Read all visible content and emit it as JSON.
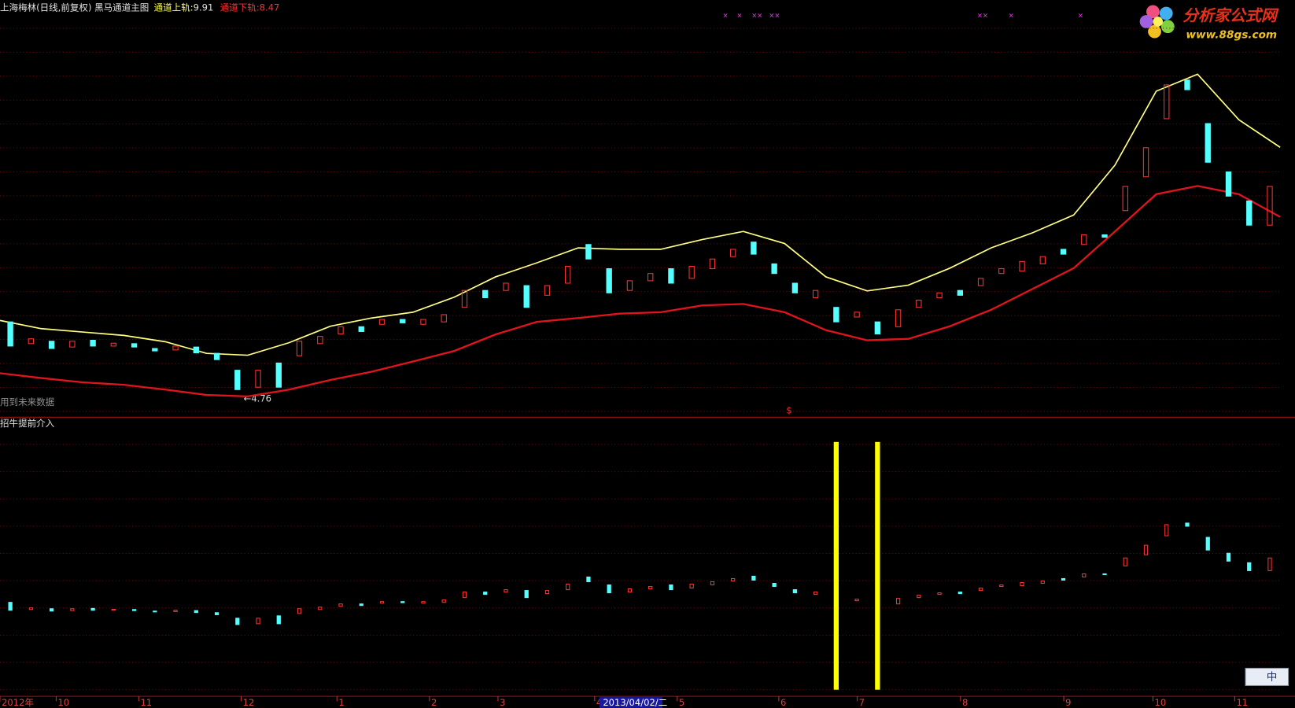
{
  "header": {
    "title": "上海梅林(日线,前复权) 黑马通道主图",
    "upper_label": "通道上轨:",
    "upper_value": 9.91,
    "lower_label": "通道下轨:",
    "lower_value": 8.47,
    "future_note": "用到未来数据",
    "low_mark": "←4.76",
    "dollar": "$",
    "indicator_title": "招牛提前介入",
    "logo_title": "分析家公式网",
    "logo_url": "www.88gs.com",
    "ime": "中"
  },
  "x_axis_labels": [
    "2012年",
    "10",
    "11",
    "12",
    "1",
    "2",
    "3",
    "4",
    "2013/04/02/二",
    "5",
    "6",
    "7",
    "8",
    "9",
    "10",
    "11"
  ],
  "chart_data": {
    "type": "candlestick",
    "ylim": [
      4.33,
      12.61
    ],
    "xlim": [
      0,
      62
    ],
    "up_color": "#ff3232",
    "down_color": "#54ffff",
    "bands": [
      {
        "name": "通道上轨:",
        "color": "#ffff80",
        "x": [
          0,
          2,
          4,
          6,
          8,
          10,
          12,
          14,
          16,
          18,
          20,
          22,
          24,
          26,
          28,
          30,
          32,
          34,
          36,
          38,
          40,
          42,
          44,
          46,
          48,
          50,
          52,
          54,
          56,
          58,
          60,
          62
        ],
        "values": [
          6.33,
          6.16,
          6.09,
          6.02,
          5.89,
          5.65,
          5.61,
          5.87,
          6.21,
          6.38,
          6.5,
          6.81,
          7.23,
          7.52,
          7.83,
          7.8,
          7.8,
          8.0,
          8.17,
          7.92,
          7.23,
          6.94,
          7.06,
          7.41,
          7.83,
          8.14,
          8.51,
          9.54,
          11.07,
          11.42,
          10.48,
          9.91
        ]
      },
      {
        "name": "通道下轨:",
        "color": "#e0141e",
        "x": [
          0,
          2,
          4,
          6,
          8,
          10,
          12,
          14,
          16,
          18,
          20,
          22,
          24,
          26,
          28,
          30,
          32,
          34,
          36,
          38,
          40,
          42,
          44,
          46,
          48,
          50,
          52,
          54,
          56,
          58,
          60,
          62
        ],
        "values": [
          5.24,
          5.14,
          5.05,
          5.0,
          4.9,
          4.79,
          4.76,
          4.9,
          5.1,
          5.27,
          5.48,
          5.7,
          6.04,
          6.3,
          6.38,
          6.47,
          6.5,
          6.64,
          6.67,
          6.5,
          6.13,
          5.92,
          5.95,
          6.21,
          6.55,
          6.98,
          7.41,
          8.17,
          8.94,
          9.11,
          8.94,
          8.47
        ]
      }
    ],
    "candles": [
      [
        6.3,
        5.8
      ],
      [
        5.85,
        5.95
      ],
      [
        5.9,
        5.75
      ],
      [
        5.78,
        5.9
      ],
      [
        5.92,
        5.8
      ],
      [
        5.8,
        5.86
      ],
      [
        5.85,
        5.78
      ],
      [
        5.75,
        5.7
      ],
      [
        5.72,
        5.8
      ],
      [
        5.78,
        5.66
      ],
      [
        5.65,
        5.52
      ],
      [
        5.3,
        4.9
      ],
      [
        4.95,
        5.3
      ],
      [
        5.45,
        4.95
      ],
      [
        5.6,
        5.9
      ],
      [
        5.85,
        6.0
      ],
      [
        6.05,
        6.2
      ],
      [
        6.2,
        6.1
      ],
      [
        6.25,
        6.35
      ],
      [
        6.35,
        6.28
      ],
      [
        6.25,
        6.35
      ],
      [
        6.3,
        6.45
      ],
      [
        6.6,
        6.95
      ],
      [
        6.95,
        6.8
      ],
      [
        6.95,
        7.1
      ],
      [
        7.05,
        6.6
      ],
      [
        6.85,
        7.05
      ],
      [
        7.1,
        7.45
      ],
      [
        7.9,
        7.6
      ],
      [
        7.4,
        6.9
      ],
      [
        6.95,
        7.15
      ],
      [
        7.15,
        7.3
      ],
      [
        7.4,
        7.1
      ],
      [
        7.2,
        7.45
      ],
      [
        7.4,
        7.6
      ],
      [
        7.65,
        7.8
      ],
      [
        7.95,
        7.7
      ],
      [
        7.5,
        7.3
      ],
      [
        7.1,
        6.9
      ],
      [
        6.8,
        6.95
      ],
      [
        6.6,
        6.3
      ],
      [
        6.4,
        6.5
      ],
      [
        6.3,
        6.05
      ],
      [
        6.2,
        6.55
      ],
      [
        6.6,
        6.75
      ],
      [
        6.8,
        6.9
      ],
      [
        6.95,
        6.85
      ],
      [
        7.05,
        7.2
      ],
      [
        7.3,
        7.4
      ],
      [
        7.35,
        7.55
      ],
      [
        7.5,
        7.65
      ],
      [
        7.8,
        7.7
      ],
      [
        7.9,
        8.1
      ],
      [
        8.1,
        8.05
      ],
      [
        8.6,
        9.1
      ],
      [
        9.3,
        9.9
      ],
      [
        10.5,
        11.2
      ],
      [
        11.3,
        11.1
      ],
      [
        10.4,
        9.6
      ],
      [
        9.4,
        8.9
      ],
      [
        8.8,
        8.3
      ],
      [
        8.3,
        9.1
      ]
    ],
    "signals": [
      40,
      42
    ],
    "signal_color": "#ffff00"
  }
}
